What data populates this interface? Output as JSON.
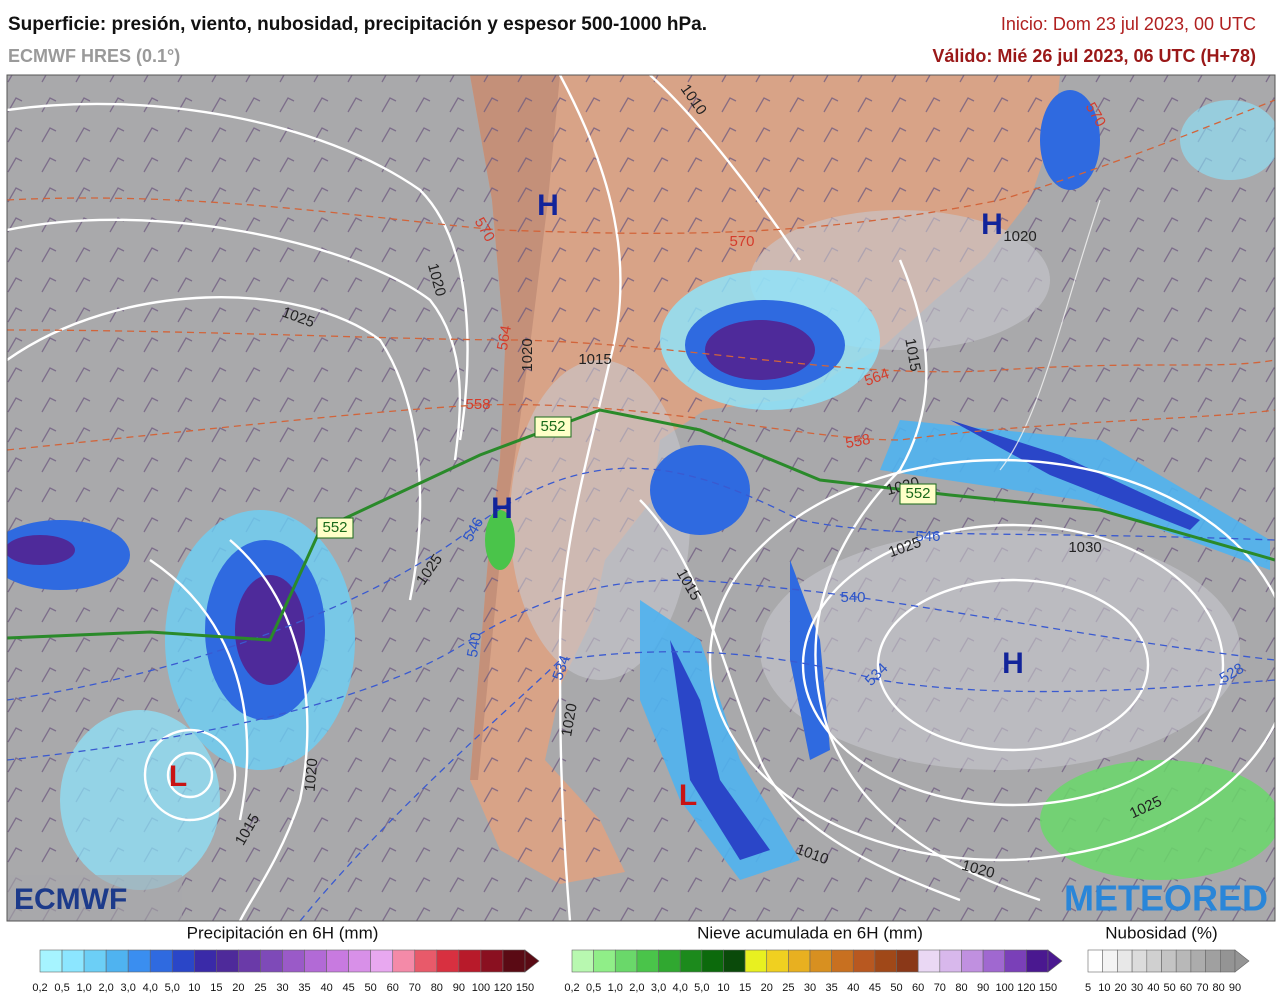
{
  "header": {
    "title": "Superficie: presión, viento, nubosidad, precipitación y espesor 500-1000 hPa.",
    "model": "ECMWF HRES (0.1°)",
    "init": "Inicio: Dom 23 jul 2023, 00 UTC",
    "valid": "Válido: Mié 26 jul 2023, 06 UTC (H+78)"
  },
  "map": {
    "labels": [
      {
        "text": "1010",
        "color": "#222222"
      },
      {
        "text": "1020",
        "color": "#222222"
      },
      {
        "text": "1020",
        "color": "#222222"
      },
      {
        "text": "1025",
        "color": "#222222"
      },
      {
        "text": "1015",
        "color": "#222222"
      },
      {
        "text": "1020",
        "color": "#222222"
      },
      {
        "text": "1015",
        "color": "#222222"
      },
      {
        "text": "1020",
        "color": "#222222"
      },
      {
        "text": "1025",
        "color": "#222222"
      },
      {
        "text": "1025",
        "color": "#222222"
      },
      {
        "text": "1030",
        "color": "#222222"
      },
      {
        "text": "1015",
        "color": "#222222"
      },
      {
        "text": "1020",
        "color": "#222222"
      },
      {
        "text": "1020",
        "color": "#222222"
      },
      {
        "text": "1015",
        "color": "#222222"
      },
      {
        "text": "1010",
        "color": "#222222"
      },
      {
        "text": "1020",
        "color": "#222222"
      },
      {
        "text": "1025",
        "color": "#222222"
      },
      {
        "text": "570",
        "color": "#d43c2c"
      },
      {
        "text": "570",
        "color": "#d43c2c"
      },
      {
        "text": "570",
        "color": "#d43c2c"
      },
      {
        "text": "564",
        "color": "#d43c2c"
      },
      {
        "text": "564",
        "color": "#d43c2c"
      },
      {
        "text": "558",
        "color": "#d43c2c"
      },
      {
        "text": "558",
        "color": "#d43c2c"
      },
      {
        "text": "546",
        "color": "#2d55c8"
      },
      {
        "text": "546",
        "color": "#2d55c8"
      },
      {
        "text": "540",
        "color": "#2d55c8"
      },
      {
        "text": "540",
        "color": "#2d55c8"
      },
      {
        "text": "534",
        "color": "#2d55c8"
      },
      {
        "text": "534",
        "color": "#2d55c8"
      },
      {
        "text": "528",
        "color": "#2d55c8"
      },
      {
        "text": "552",
        "color": "#1a6a1a"
      },
      {
        "text": "552",
        "color": "#1a6a1a"
      },
      {
        "text": "552",
        "color": "#1a6a1a"
      },
      {
        "text": "H",
        "color": "#12249a"
      },
      {
        "text": "H",
        "color": "#12249a"
      },
      {
        "text": "H",
        "color": "#12249a"
      },
      {
        "text": "H",
        "color": "#12249a"
      },
      {
        "text": "L",
        "color": "#c81414"
      },
      {
        "text": "L",
        "color": "#c81414"
      }
    ],
    "logos": [
      "ECMWF",
      "METEORED"
    ]
  },
  "legend": {
    "precipitation": {
      "title": "Precipitación en 6H (mm)",
      "labels": [
        "0,2",
        "0,5",
        "1,0",
        "2,0",
        "3,0",
        "4,0",
        "5,0",
        "10",
        "15",
        "20",
        "25",
        "30",
        "35",
        "40",
        "45",
        "50",
        "60",
        "70",
        "80",
        "90",
        "100",
        "120",
        "150"
      ],
      "colors": [
        "#a6f4ff",
        "#8ce6ff",
        "#6ccff6",
        "#4fb3f0",
        "#3a8ef0",
        "#2f6ae0",
        "#2a46c8",
        "#3a2aa8",
        "#4e2a9a",
        "#6a3aa8",
        "#7e4ab8",
        "#9a5ac8",
        "#b26ad6",
        "#c87ae0",
        "#d890e8",
        "#e8a8f0",
        "#f48aa8",
        "#e85a6a",
        "#d83040",
        "#b81a2a",
        "#8a1020",
        "#5a0a14"
      ]
    },
    "snow": {
      "title": "Nieve acumulada en 6H (mm)",
      "labels": [
        "0,2",
        "0,5",
        "1,0",
        "2,0",
        "3,0",
        "4,0",
        "5,0",
        "10",
        "15",
        "20",
        "25",
        "30",
        "35",
        "40",
        "45",
        "50",
        "60",
        "70",
        "80",
        "90",
        "100",
        "120",
        "150"
      ],
      "colors": [
        "#b8f8b0",
        "#90ee88",
        "#6ad86a",
        "#4ac44a",
        "#30a830",
        "#1c8a1c",
        "#0c6a0c",
        "#0a4a0a",
        "#e8f020",
        "#f0d020",
        "#e8b020",
        "#d89020",
        "#c87020",
        "#b85820",
        "#a04818",
        "#8a3818",
        "#ead8f4",
        "#d8b8ec",
        "#c090e0",
        "#a068d0",
        "#7a40b8",
        "#4a1890"
      ]
    },
    "cloud": {
      "title": "Nubosidad (%)",
      "labels": [
        "5",
        "10",
        "20",
        "30",
        "40",
        "50",
        "60",
        "70",
        "80",
        "90"
      ],
      "colors": [
        "#ffffff",
        "#f4f4f4",
        "#e8e8e8",
        "#dcdcdc",
        "#d0d0d0",
        "#c4c4c4",
        "#b8b8b8",
        "#acacac",
        "#a0a0a0",
        "#949494"
      ]
    }
  }
}
